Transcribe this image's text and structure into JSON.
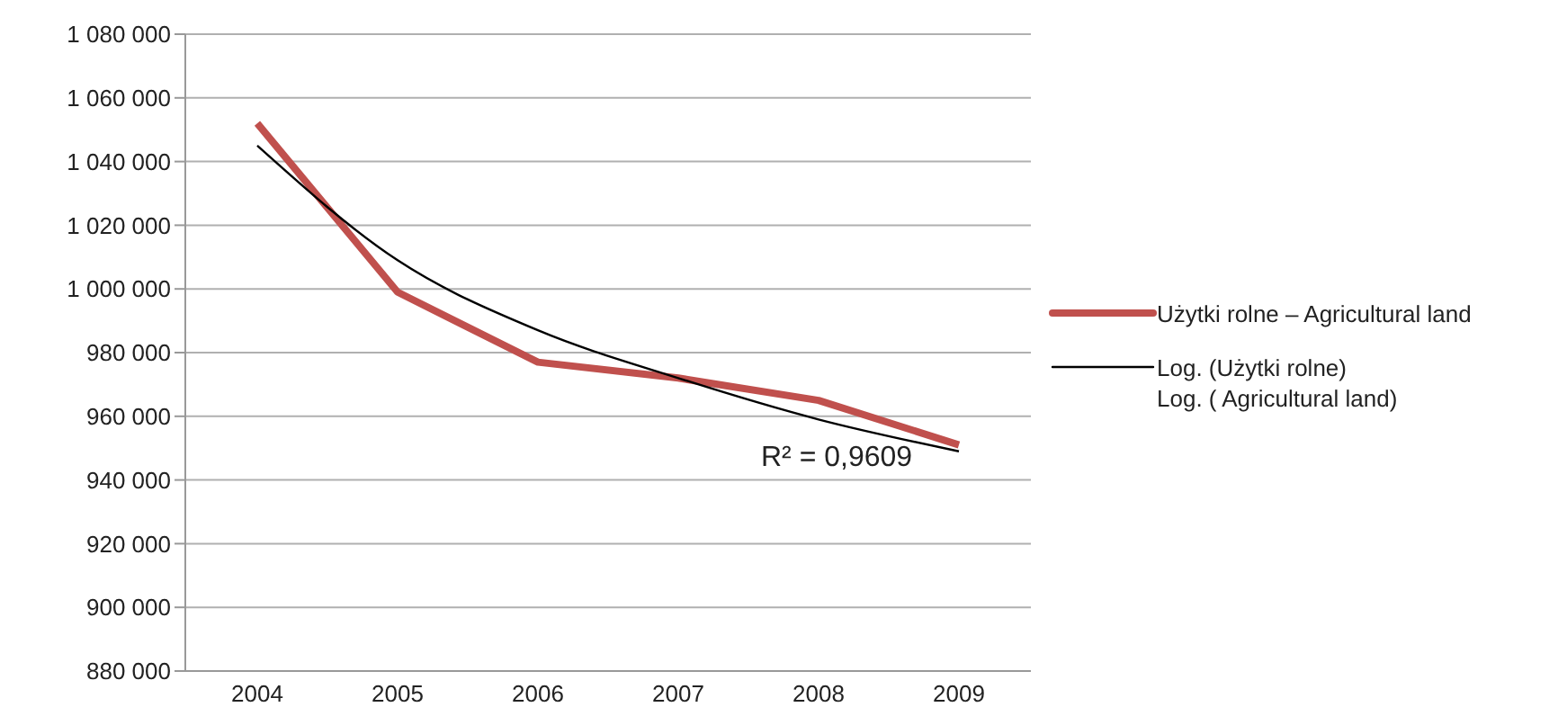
{
  "chart_data": {
    "type": "line",
    "categories": [
      "2004",
      "2005",
      "2006",
      "2007",
      "2008",
      "2009"
    ],
    "series": [
      {
        "name": "Użytki rolne – Agricultural land",
        "color": "#c0504d",
        "values": [
          1052000,
          999000,
          977000,
          972000,
          965000,
          951000
        ]
      },
      {
        "name": "Log. (Użytki rolne)\nLog. ( Agricultural land)",
        "color": "#000000",
        "values": [
          1045000,
          1009000,
          987000,
          972000,
          959000,
          949000
        ]
      }
    ],
    "ylim": [
      880000,
      1080000
    ],
    "yticks": [
      880000,
      900000,
      920000,
      940000,
      960000,
      980000,
      1000000,
      1020000,
      1040000,
      1060000,
      1080000
    ],
    "grid": "y",
    "legend": "right",
    "marker": "none",
    "line_style": "solid",
    "annotations": [
      "R² = 0,9609"
    ]
  }
}
